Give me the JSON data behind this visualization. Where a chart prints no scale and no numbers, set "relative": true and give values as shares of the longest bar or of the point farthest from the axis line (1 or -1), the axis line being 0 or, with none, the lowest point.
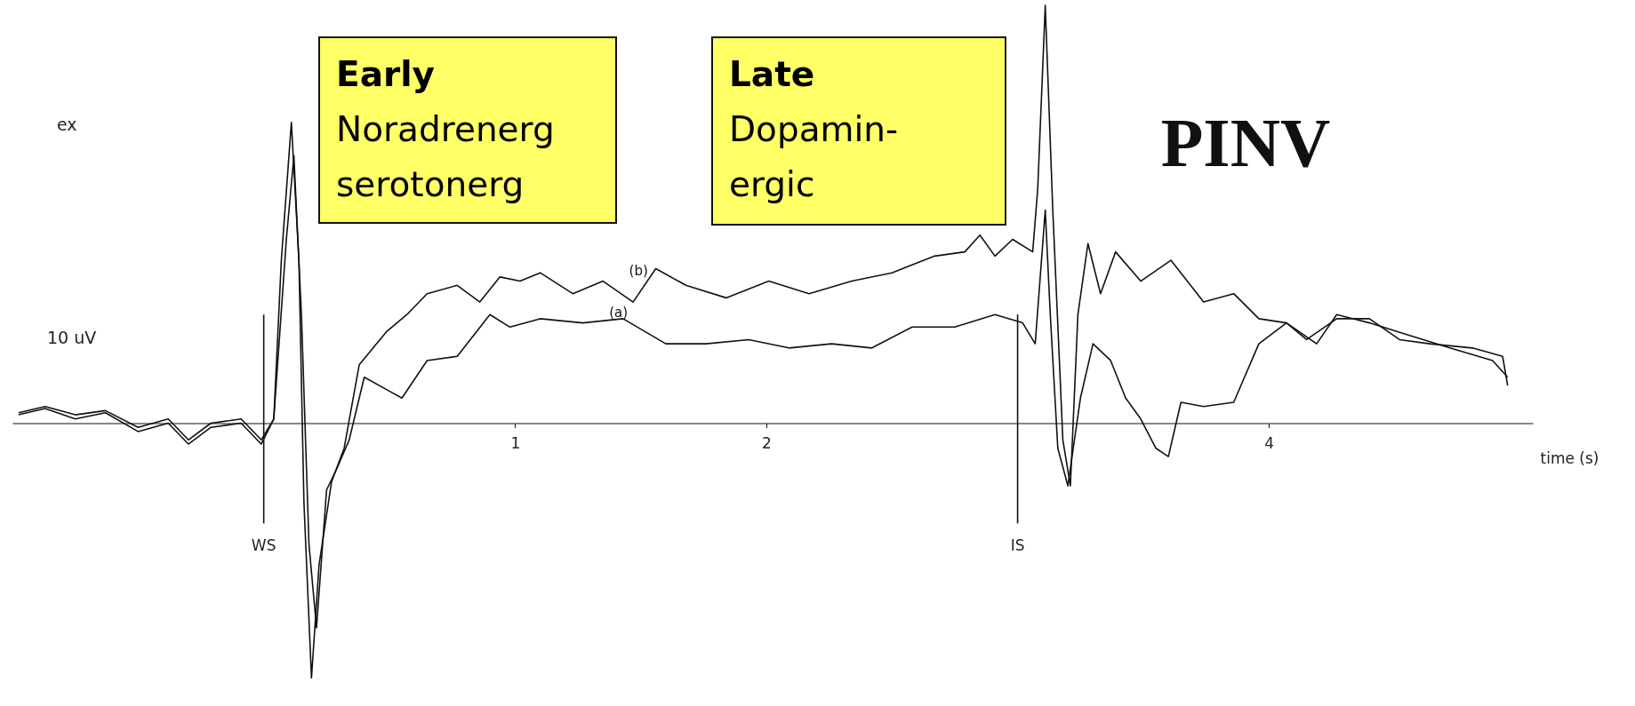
{
  "chart_data": {
    "type": "line",
    "title": "PINV",
    "xlabel": "time (s)",
    "relative": true,
    "xlim": [
      -1,
      5.05
    ],
    "xticks": [
      1,
      2,
      4
    ],
    "grid": false,
    "marker": "none",
    "line_style": "solid",
    "ref_lines": [
      {
        "axis": "x",
        "value": 0,
        "label": "WS"
      },
      {
        "axis": "x",
        "value": 3,
        "label": "IS"
      }
    ],
    "annotations": [
      "ex",
      "10 uV",
      "Early\nNoradrenerg\nserotonerg",
      "Late\nDopamin-\nergic"
    ],
    "series": [
      {
        "name": "(b)",
        "color": "#111111",
        "x": [
          -0.975,
          -0.87,
          -0.75,
          -0.63,
          -0.5,
          -0.38,
          -0.3,
          -0.21,
          -0.09,
          -0.01,
          0.04,
          0.07,
          0.11,
          0.14,
          0.16,
          0.19,
          0.22,
          0.27,
          0.32,
          0.38,
          0.49,
          0.57,
          0.65,
          0.77,
          0.86,
          0.94,
          1.02,
          1.1,
          1.23,
          1.35,
          1.47,
          1.56,
          1.68,
          1.84,
          2.01,
          2.17,
          2.34,
          2.5,
          2.67,
          2.79,
          2.85,
          2.91,
          2.98,
          3.06,
          3.08,
          3.11,
          3.14,
          3.18,
          3.21,
          3.24,
          3.28,
          3.33,
          3.39,
          3.49,
          3.61,
          3.74,
          3.86,
          3.96,
          4.07,
          4.15,
          4.27,
          4.4,
          4.52,
          4.64,
          4.81,
          4.93,
          4.95
        ],
        "values": [
          0.025,
          0.04,
          0.02,
          0.03,
          -0.01,
          0.01,
          -0.04,
          0,
          0.01,
          -0.04,
          0.01,
          0.39,
          0.72,
          0.39,
          -0.19,
          -0.61,
          -0.34,
          -0.14,
          -0.06,
          0.14,
          0.22,
          0.26,
          0.31,
          0.33,
          0.29,
          0.35,
          0.34,
          0.36,
          0.31,
          0.34,
          0.29,
          0.37,
          0.33,
          0.3,
          0.34,
          0.31,
          0.34,
          0.36,
          0.4,
          0.41,
          0.45,
          0.4,
          0.44,
          0.41,
          0.56,
          1.0,
          0.51,
          -0.04,
          -0.15,
          0.26,
          0.43,
          0.31,
          0.41,
          0.34,
          0.39,
          0.29,
          0.31,
          0.25,
          0.24,
          0.2,
          0.25,
          0.25,
          0.2,
          0.19,
          0.18,
          0.16,
          0.09
        ]
      },
      {
        "name": "(a)",
        "color": "#111111",
        "x": [
          -0.975,
          -0.87,
          -0.75,
          -0.63,
          -0.5,
          -0.38,
          -0.3,
          -0.21,
          -0.09,
          -0.01,
          0.04,
          0.09,
          0.12,
          0.15,
          0.18,
          0.21,
          0.25,
          0.29,
          0.34,
          0.4,
          0.49,
          0.55,
          0.65,
          0.77,
          0.9,
          0.98,
          1.1,
          1.27,
          1.43,
          1.6,
          1.76,
          1.93,
          2.09,
          2.26,
          2.42,
          2.58,
          2.75,
          2.91,
          3.02,
          3.07,
          3.11,
          3.13,
          3.16,
          3.2,
          3.25,
          3.3,
          3.37,
          3.43,
          3.49,
          3.55,
          3.6,
          3.65,
          3.74,
          3.86,
          3.96,
          4.07,
          4.19,
          4.27,
          4.4,
          4.56,
          4.72,
          4.89,
          4.95
        ],
        "values": [
          0.02,
          0.035,
          0.01,
          0.025,
          -0.02,
          0.0,
          -0.05,
          -0.01,
          0.0,
          -0.05,
          0.01,
          0.44,
          0.64,
          0.26,
          -0.29,
          -0.49,
          -0.16,
          -0.11,
          -0.04,
          0.11,
          0.08,
          0.06,
          0.15,
          0.16,
          0.26,
          0.23,
          0.25,
          0.24,
          0.25,
          0.19,
          0.19,
          0.2,
          0.18,
          0.19,
          0.18,
          0.23,
          0.23,
          0.26,
          0.24,
          0.19,
          0.51,
          0.26,
          -0.06,
          -0.15,
          0.06,
          0.19,
          0.15,
          0.06,
          0.01,
          -0.06,
          -0.08,
          0.05,
          0.04,
          0.05,
          0.19,
          0.24,
          0.19,
          0.26,
          0.24,
          0.21,
          0.18,
          0.15,
          0.11
        ]
      }
    ]
  }
}
